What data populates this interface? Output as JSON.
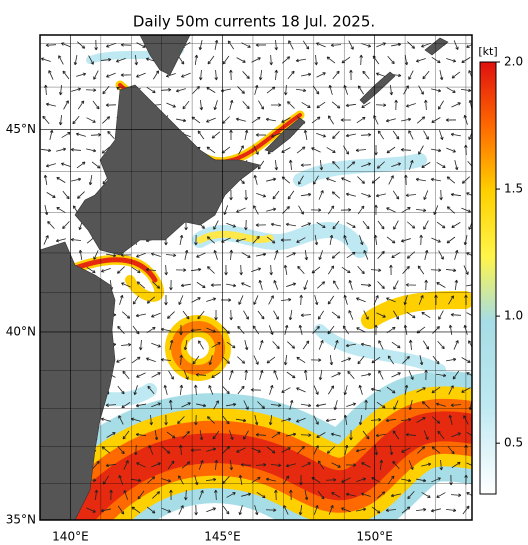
{
  "title": "Daily 50m currents 18 Jul. 2025.",
  "map": {
    "lon_range": [
      139,
      153.2
    ],
    "lat_range": [
      35,
      47.2
    ],
    "lat_ticks": [
      {
        "value": 35,
        "label": "35°N"
      },
      {
        "value": 40,
        "label": "40°N"
      },
      {
        "value": 45,
        "label": "45°N"
      }
    ],
    "lon_ticks": [
      {
        "value": 140,
        "label": "140°E"
      },
      {
        "value": 145,
        "label": "145°E"
      },
      {
        "value": 150,
        "label": "150°E"
      }
    ]
  },
  "colorbar": {
    "unit": "[kt]",
    "range": [
      0.3,
      2.0
    ],
    "ticks": [
      0.5,
      {
        "value": 1.0,
        "label": "1.0"
      },
      1.5,
      {
        "value": 2.0,
        "label": "2.0"
      }
    ]
  }
}
